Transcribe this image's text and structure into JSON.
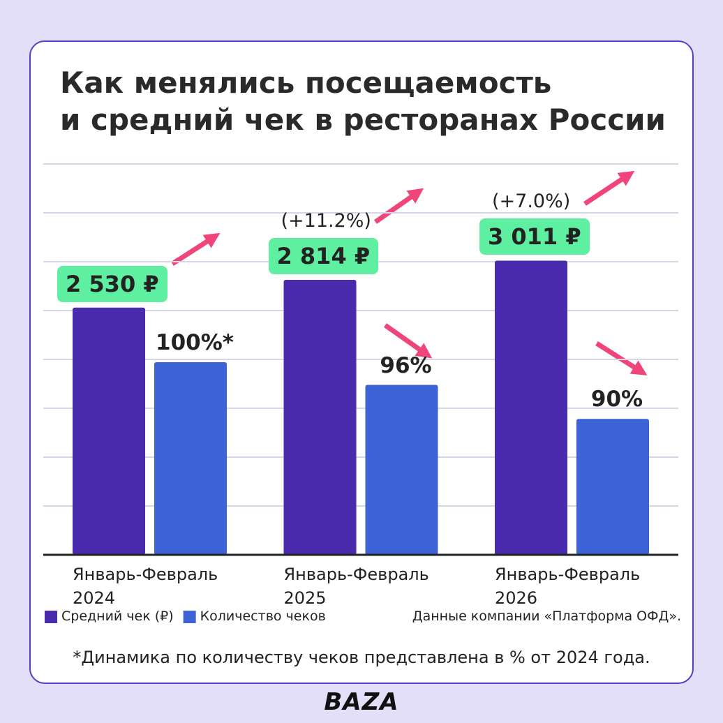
{
  "title": "Как менялись посещаемость\nи средний чек в ресторанах России",
  "chart_data": {
    "type": "bar",
    "categories": [
      "Январь-Февраль\n2024",
      "Январь-Февраль\n2025",
      "Январь-Февраль\n2026"
    ],
    "ylim": [
      0,
      4000
    ],
    "y2lim": [
      66,
      135
    ],
    "grid": true,
    "series": [
      {
        "name": "Средний чек (₽)",
        "color": "#4a2aad",
        "values": [
          2530,
          2814,
          3011
        ],
        "value_labels": [
          "2 530 ₽",
          "2 814 ₽",
          "3 011 ₽"
        ],
        "change_labels": [
          null,
          "(+11.2%)",
          "(+7.0%)"
        ]
      },
      {
        "name": "Количество чеков",
        "color": "#3e63d6",
        "axis": "y2",
        "values": [
          100,
          96,
          90
        ],
        "value_labels": [
          "100%*",
          "96%",
          "90%"
        ]
      }
    ]
  },
  "source": "Данные компании «Платформа ОФД».",
  "footnote": "*Динамика по количеству чеков представлена в % от 2024 года.",
  "brand": "BAZA"
}
